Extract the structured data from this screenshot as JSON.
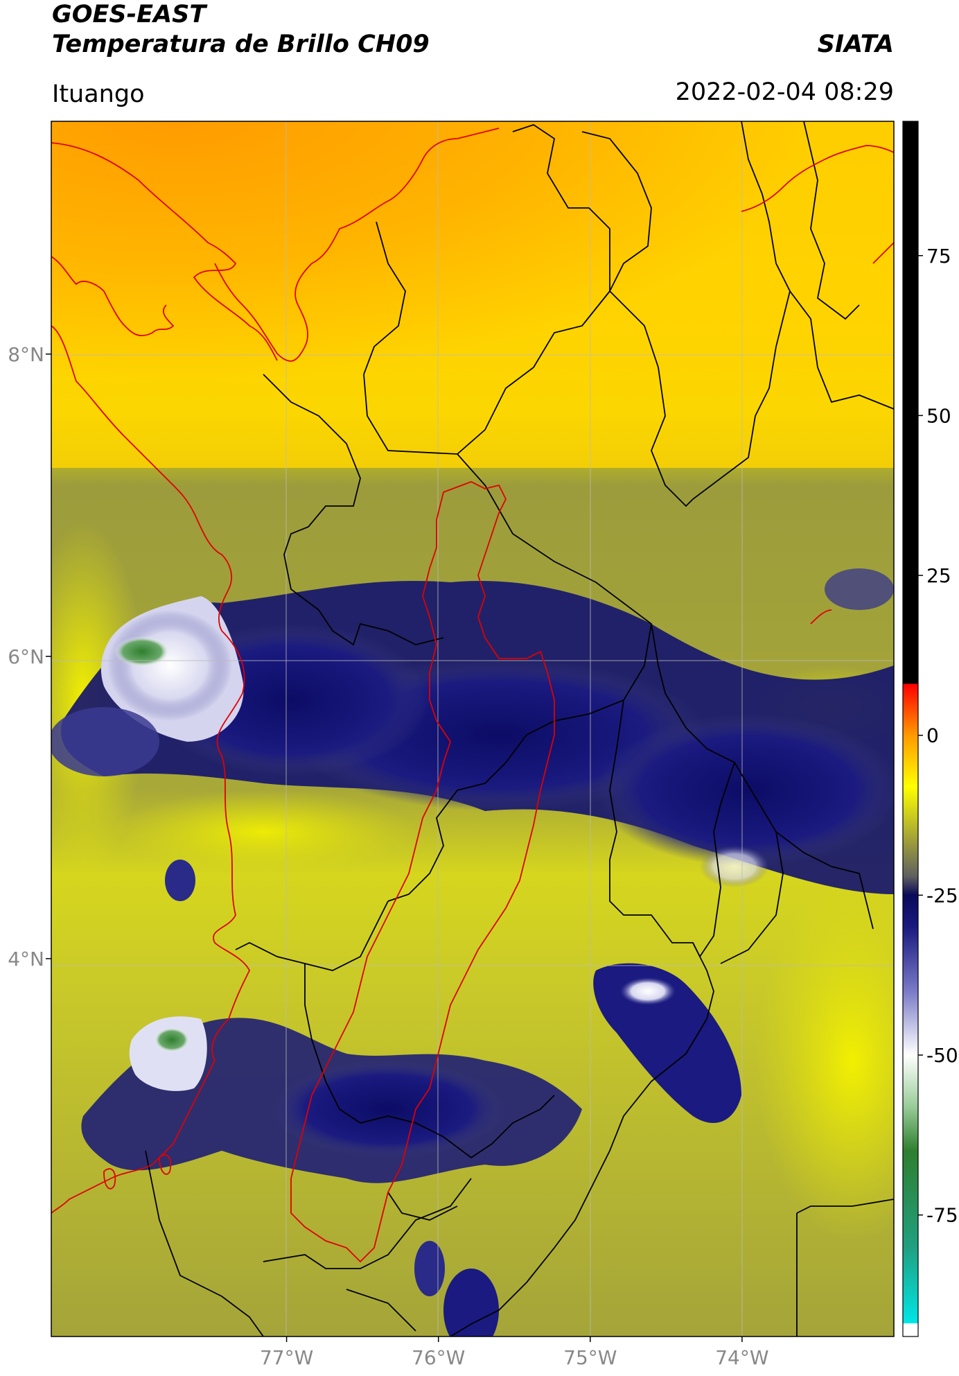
{
  "header": {
    "satellite": "GOES-EAST",
    "product": "Temperatura de Brillo CH09",
    "organization": "SIATA",
    "region": "Ituango",
    "datetime": "2022-02-04 08:29"
  },
  "map": {
    "lat_range": [
      1.5,
      9.54
    ],
    "lon_range": [
      -78.55,
      -73.0
    ],
    "lat_ticks": [
      "8°N",
      "6°N",
      "4°N"
    ],
    "lon_ticks": [
      "77°W",
      "76°W",
      "75°W",
      "74°W"
    ],
    "lat_tick_values": [
      8,
      6,
      4
    ],
    "lon_tick_values": [
      -77,
      -76,
      -75,
      -74
    ],
    "colors": {
      "warm": "#ff9a00",
      "mid": "#ffe600",
      "olive": "#8a8a3a",
      "cold": "#14167a",
      "very_cold": "#f0f0ff",
      "coldest": "#3a8a3a",
      "coast": "#e00000",
      "borders": "#000000",
      "grid": "#bbbbbb"
    }
  },
  "colorbar": {
    "ticks": [
      "75",
      "50",
      "25",
      "0",
      "-25",
      "-50",
      "-75"
    ],
    "tick_values": [
      75,
      50,
      25,
      0,
      -25,
      -50,
      -75
    ],
    "vmin": -94,
    "vmax": 96,
    "stops": [
      {
        "v": -94,
        "c": "#ffffff"
      },
      {
        "v": -92,
        "c": "#ffffff"
      },
      {
        "v": -91.9,
        "c": "#00e6e6"
      },
      {
        "v": -80,
        "c": "#20a080"
      },
      {
        "v": -65,
        "c": "#2f7f2f"
      },
      {
        "v": -58,
        "c": "#9acd9a"
      },
      {
        "v": -50,
        "c": "#ffffff"
      },
      {
        "v": -40,
        "c": "#7a7ac8"
      },
      {
        "v": -30,
        "c": "#1a1a80"
      },
      {
        "v": -25,
        "c": "#0a0a5a"
      },
      {
        "v": -22,
        "c": "#606060"
      },
      {
        "v": -15,
        "c": "#b0b030"
      },
      {
        "v": -8,
        "c": "#ffff00"
      },
      {
        "v": 0,
        "c": "#ff9a00"
      },
      {
        "v": 8,
        "c": "#ff0000"
      },
      {
        "v": 8.1,
        "c": "#000000"
      },
      {
        "v": 96,
        "c": "#000000"
      }
    ]
  }
}
